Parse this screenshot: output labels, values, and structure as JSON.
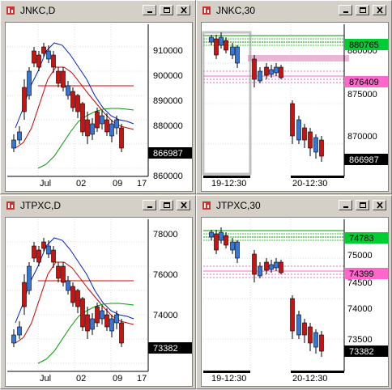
{
  "windows": [
    {
      "id": "jnkc-d",
      "title": "JNKC,D",
      "chart_data": {
        "type": "candlestick",
        "title": "JNKC,D",
        "y_ticks": [
          "910000",
          "900000",
          "890000",
          "880000",
          "870000",
          "860000"
        ],
        "x_ticks": [
          "Jul",
          "02",
          "09",
          "17"
        ],
        "current_price": "866987"
      }
    },
    {
      "id": "jnkc-30",
      "title": "JNKC,30",
      "chart_data": {
        "type": "candlestick",
        "title": "JNKC,30",
        "y_ticks": [
          "880000",
          "875000",
          "870000"
        ],
        "x_ticks": [
          "19-12:30",
          "20-12:30"
        ],
        "price_labels": [
          {
            "text": "880765",
            "color": "#00cc33"
          },
          {
            "text": "876409",
            "color": "#ff66cc"
          },
          {
            "text": "866987",
            "color": "#000000"
          }
        ]
      }
    },
    {
      "id": "jtpxc-d",
      "title": "JTPXC,D",
      "chart_data": {
        "type": "candlestick",
        "title": "JTPXC,D",
        "y_ticks": [
          "78000",
          "76000",
          "74000"
        ],
        "x_ticks": [
          "Jul",
          "02",
          "09",
          "17"
        ],
        "current_price": "73382"
      }
    },
    {
      "id": "jtpxc-30",
      "title": "JTPXC,30",
      "chart_data": {
        "type": "candlestick",
        "title": "JTPXC,30",
        "y_ticks": [
          "75000",
          "74500",
          "74000",
          "73500"
        ],
        "x_ticks": [
          "19-12:30",
          "20-12:30"
        ],
        "price_labels": [
          {
            "text": "74783",
            "color": "#00cc33"
          },
          {
            "text": "74399",
            "color": "#ff66cc"
          },
          {
            "text": "73382",
            "color": "#000000"
          }
        ]
      }
    }
  ],
  "icons": {
    "app": "chart-app-icon",
    "minimize": "minimize-icon",
    "maximize": "maximize-icon",
    "close": "close-icon"
  }
}
